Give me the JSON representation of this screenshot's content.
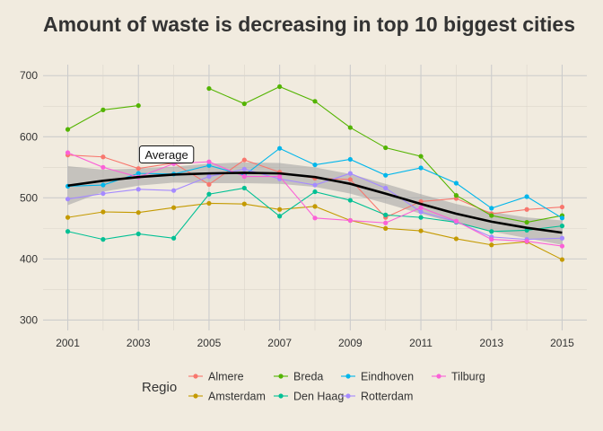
{
  "chart_data": {
    "type": "line",
    "title": "Amount of waste is decreasing in top 10 biggest cities",
    "xlabel": "",
    "ylabel": "",
    "x": [
      2001,
      2002,
      2003,
      2004,
      2005,
      2006,
      2007,
      2008,
      2009,
      2010,
      2011,
      2012,
      2013,
      2014,
      2015
    ],
    "x_ticks": [
      "2001",
      "2003",
      "2005",
      "2007",
      "2009",
      "2011",
      "2013",
      "2015"
    ],
    "y_ticks": [
      "300",
      "400",
      "500",
      "600",
      "700"
    ],
    "xlim": [
      2000.3,
      2015.7
    ],
    "ylim": [
      283,
      718
    ],
    "grid": true,
    "legend_title": "Regio",
    "legend_position": "bottom",
    "series": [
      {
        "name": "Almere",
        "color": "#f8766d",
        "values": [
          570,
          567,
          548,
          557,
          522,
          562,
          542,
          532,
          530,
          468,
          494,
          499,
          474,
          481,
          485
        ]
      },
      {
        "name": "Amsterdam",
        "color": "#c49a00",
        "values": [
          468,
          477,
          476,
          484,
          491,
          490,
          481,
          486,
          463,
          450,
          446,
          433,
          423,
          428,
          399
        ]
      },
      {
        "name": "Breda",
        "color": "#53b400",
        "values": [
          612,
          644,
          651,
          null,
          679,
          654,
          682,
          658,
          615,
          582,
          568,
          504,
          471,
          460,
          471
        ]
      },
      {
        "name": "Den Haag",
        "color": "#00c094",
        "values": [
          445,
          432,
          441,
          434,
          506,
          516,
          470,
          510,
          496,
          472,
          468,
          460,
          445,
          447,
          454
        ]
      },
      {
        "name": "Eindhoven",
        "color": "#00b6eb",
        "values": [
          519,
          521,
          540,
          539,
          553,
          537,
          581,
          554,
          563,
          537,
          549,
          524,
          483,
          502,
          467
        ]
      },
      {
        "name": "Rotterdam",
        "color": "#a58aff",
        "values": [
          498,
          507,
          514,
          512,
          535,
          547,
          531,
          521,
          540,
          516,
          477,
          461,
          436,
          432,
          434
        ]
      },
      {
        "name": "Tilburg",
        "color": "#fb61d7",
        "values": [
          574,
          550,
          534,
          556,
          559,
          535,
          535,
          467,
          463,
          459,
          484,
          462,
          432,
          429,
          421
        ]
      },
      {
        "name": "Average",
        "color": "#000000",
        "values": [
          520,
          528,
          534,
          538,
          540,
          541,
          540,
          534,
          523,
          507,
          490,
          474,
          461,
          451,
          443
        ],
        "band_upper": [
          552,
          546,
          548,
          551,
          556,
          558,
          557,
          550,
          539,
          523,
          506,
          490,
          477,
          468,
          463
        ],
        "band_lower": [
          488,
          510,
          520,
          525,
          524,
          524,
          523,
          518,
          507,
          491,
          474,
          458,
          445,
          434,
          423
        ]
      }
    ],
    "annotations": [
      {
        "text": "Average",
        "x": 2004,
        "y": 557
      }
    ]
  }
}
